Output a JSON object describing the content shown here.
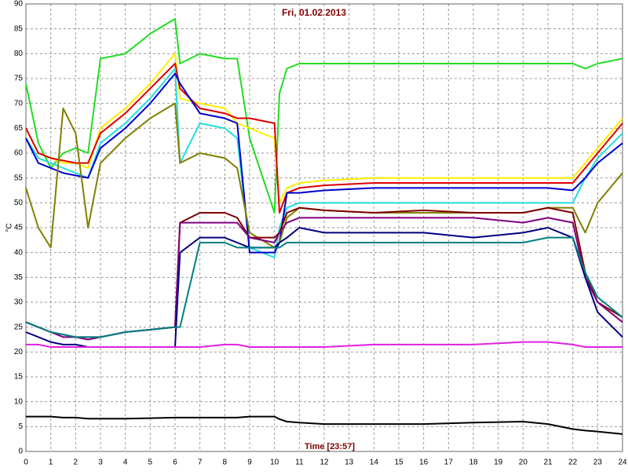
{
  "chart_data": {
    "type": "line",
    "title": "Fri, 01.02.2013",
    "x_label": "Time [23:57]",
    "y_label": "°C",
    "x": [
      0,
      0.5,
      1,
      1.5,
      2,
      2.5,
      3,
      4,
      5,
      6,
      6.2,
      7,
      8,
      8.5,
      9,
      10,
      10.2,
      10.5,
      11,
      12,
      14,
      16,
      18,
      20,
      21,
      22,
      22.5,
      23,
      24
    ],
    "xlim": [
      0,
      24
    ],
    "xticks": [
      0,
      1,
      2,
      3,
      4,
      5,
      6,
      7,
      8,
      9,
      10,
      11,
      12,
      13,
      14,
      15,
      16,
      17,
      18,
      19,
      20,
      21,
      22,
      23,
      24
    ],
    "ylim": [
      0,
      90
    ],
    "yticks": [
      0,
      5,
      10,
      15,
      20,
      25,
      30,
      35,
      40,
      45,
      50,
      55,
      60,
      65,
      70,
      75,
      80,
      85,
      90
    ],
    "grid": true,
    "series": [
      {
        "color": "#22dd22",
        "values": [
          74,
          62,
          57,
          60,
          61,
          60,
          79,
          80,
          84,
          87,
          78,
          80,
          79,
          79,
          63,
          48,
          72,
          77,
          78,
          78,
          78,
          78,
          78,
          78,
          78,
          78,
          77,
          78,
          79
        ]
      },
      {
        "color": "#ffee00",
        "values": [
          65,
          60,
          59,
          58,
          58,
          57,
          65,
          69,
          74,
          80,
          71,
          70,
          69,
          66,
          65,
          63,
          50,
          53,
          54,
          54.5,
          55,
          55,
          55,
          55,
          55,
          55,
          58,
          61,
          67
        ]
      },
      {
        "color": "#dd0000",
        "values": [
          65,
          60,
          59,
          58.5,
          58,
          58,
          64,
          68,
          73,
          78,
          73,
          69,
          68,
          67,
          67,
          66,
          48,
          52,
          53,
          53.5,
          54,
          54,
          54,
          54,
          54,
          54,
          57,
          60,
          66
        ]
      },
      {
        "color": "#22dddd",
        "values": [
          63,
          59,
          58,
          57,
          56,
          55,
          62,
          66,
          71,
          77,
          58,
          66,
          65,
          63,
          41,
          39,
          45,
          49,
          50,
          50,
          50,
          50,
          50,
          50,
          50,
          50,
          55,
          59,
          64
        ]
      },
      {
        "color": "#0000cc",
        "values": [
          63,
          58,
          57,
          56,
          55.5,
          55,
          61,
          65,
          70,
          76,
          74,
          68,
          67,
          66,
          40,
          40,
          42,
          52,
          52,
          52.5,
          53,
          53,
          53,
          53,
          53,
          52.5,
          55,
          58,
          62
        ]
      },
      {
        "color": "#808000",
        "values": [
          53,
          45,
          41,
          69,
          64,
          45,
          58,
          63,
          67,
          70,
          58,
          60,
          59,
          57,
          44,
          41,
          42,
          47,
          49,
          48.5,
          48,
          48,
          48,
          48,
          49,
          49,
          44,
          50,
          56
        ]
      },
      {
        "color": "#800000",
        "values": [
          26,
          25,
          24,
          23.5,
          23,
          23,
          23,
          24,
          24.5,
          25,
          46,
          48,
          48,
          47,
          43,
          43,
          44,
          48,
          49,
          48.5,
          48,
          48.5,
          48,
          48,
          49,
          48,
          36,
          30,
          27
        ]
      },
      {
        "color": "#800080",
        "values": [
          26,
          25,
          24,
          23,
          23,
          22.5,
          23,
          24,
          24.5,
          25,
          46,
          46,
          46,
          46,
          43,
          42,
          44,
          46,
          47,
          47,
          47,
          47,
          47,
          46,
          47,
          46,
          35,
          30,
          26
        ]
      },
      {
        "color": "#000080",
        "values": [
          24,
          23,
          22,
          21.5,
          21.5,
          21,
          21,
          21,
          21,
          21,
          40,
          43,
          43,
          42,
          41,
          41,
          42,
          43,
          45,
          44,
          44,
          44,
          43,
          44,
          45,
          43,
          35,
          28,
          23
        ]
      },
      {
        "color": "#008080",
        "values": [
          26,
          25,
          24,
          23.5,
          23,
          23,
          23,
          24,
          24.5,
          25,
          25,
          42,
          42,
          41,
          41,
          41,
          41,
          42,
          42,
          42,
          42,
          42,
          42,
          42,
          43,
          43,
          36,
          31,
          27
        ]
      },
      {
        "color": "#e020e0",
        "values": [
          21.5,
          21.5,
          21,
          21,
          21,
          21,
          21,
          21,
          21,
          21,
          21,
          21,
          21.5,
          21.5,
          21,
          21,
          21,
          21,
          21,
          21,
          21.5,
          21.5,
          21.5,
          22,
          22,
          21.5,
          21,
          21,
          21
        ]
      },
      {
        "color": "#000000",
        "values": [
          7,
          7,
          7,
          6.8,
          6.8,
          6.6,
          6.6,
          6.6,
          6.7,
          6.8,
          6.8,
          6.8,
          6.8,
          6.8,
          7,
          7,
          6.5,
          6,
          5.8,
          5.5,
          5.5,
          5.5,
          5.8,
          6,
          5.5,
          4.5,
          4.2,
          4,
          3.5
        ]
      }
    ]
  }
}
